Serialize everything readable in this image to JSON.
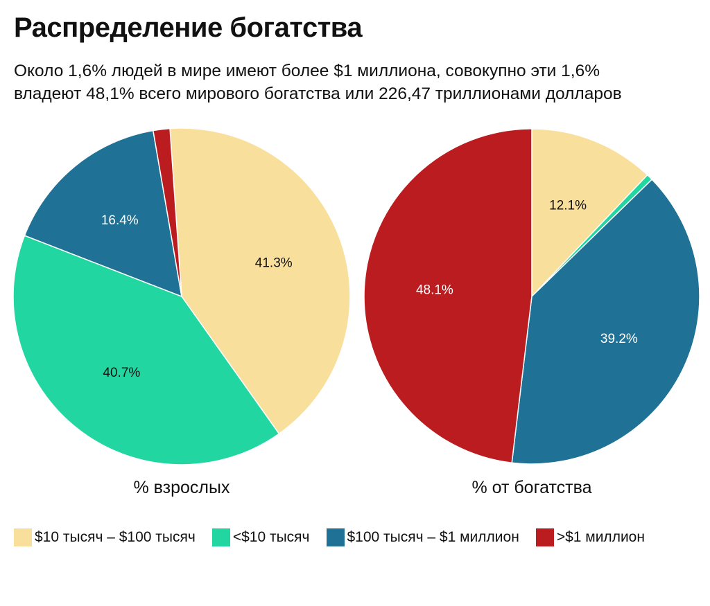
{
  "title": "Распределение богатства",
  "subtitle": [
    "Около 1,6% людей в мире имеют более $1 миллиона, совокупно эти 1,6%",
    "владеют 48,1% всего мирового богатства или 226,47 триллионами долларов"
  ],
  "colors": {
    "10k_100k": "#F9DF9C",
    "under_10k": "#21D6A0",
    "100k_1m": "#1F7296",
    "over_1m": "#BB1C20"
  },
  "legend": [
    {
      "key": "10k_100k",
      "label": "$10 тысяч – $100 тысяч"
    },
    {
      "key": "under_10k",
      "label": "<$10 тысяч"
    },
    {
      "key": "100k_1m",
      "label": "$100 тысяч – $1 миллион"
    },
    {
      "key": "over_1m",
      "label": ">$1 миллион"
    }
  ],
  "chart_data": [
    {
      "type": "pie",
      "title": "% взрослых",
      "slices": [
        {
          "key": "10k_100k",
          "value": 41.3,
          "label": "41.3%"
        },
        {
          "key": "under_10k",
          "value": 40.7,
          "label": "40.7%"
        },
        {
          "key": "100k_1m",
          "value": 16.4,
          "label": "16.4%"
        },
        {
          "key": "over_1m",
          "value": 1.6,
          "label": ""
        }
      ]
    },
    {
      "type": "pie",
      "title": "% от богатства",
      "slices": [
        {
          "key": "10k_100k",
          "value": 12.1,
          "label": "12.1%"
        },
        {
          "key": "under_10k",
          "value": 0.6,
          "label": ""
        },
        {
          "key": "100k_1m",
          "value": 39.2,
          "label": "39.2%"
        },
        {
          "key": "over_1m",
          "value": 48.1,
          "label": "48.1%"
        }
      ]
    }
  ]
}
